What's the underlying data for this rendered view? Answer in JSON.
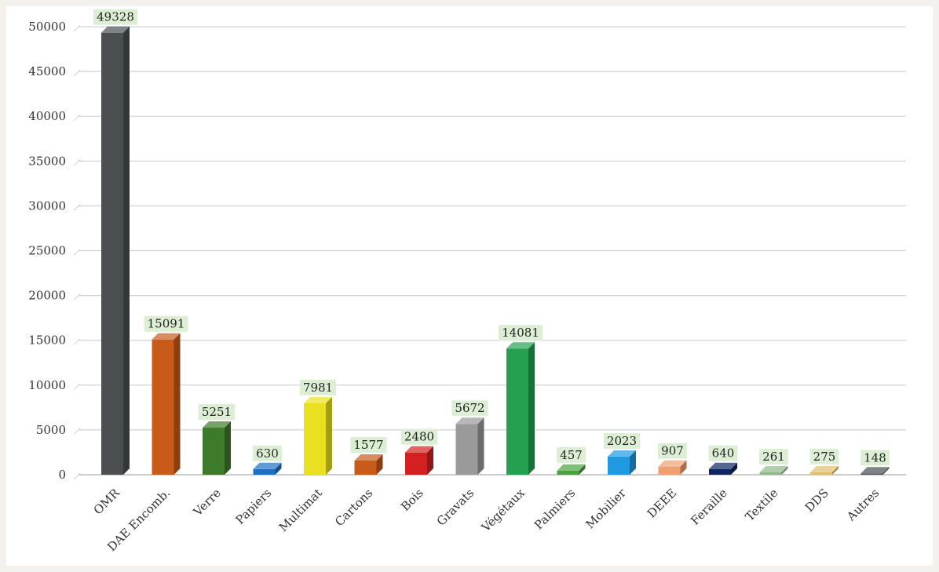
{
  "chart_data": {
    "type": "bar",
    "title": "",
    "xlabel": "",
    "ylabel": "",
    "ylim": [
      0,
      50000
    ],
    "yticks": [
      0,
      5000,
      10000,
      15000,
      20000,
      25000,
      30000,
      35000,
      40000,
      45000,
      50000
    ],
    "grid": true,
    "categories": [
      "OMR",
      "DAE Encomb.",
      "Verre",
      "Papiers",
      "Multimat",
      "Cartons",
      "Bois",
      "Gravats",
      "Végétaux",
      "Palmiers",
      "Mobilier",
      "DEEE",
      "Feraille",
      "Textile",
      "DDS",
      "Autres"
    ],
    "values": [
      49328,
      15091,
      5251,
      630,
      7981,
      1577,
      2480,
      5672,
      14081,
      457,
      2023,
      907,
      640,
      261,
      275,
      148
    ],
    "colors": [
      "#4a4f52",
      "#c85a1a",
      "#3d7a2a",
      "#1f6fc0",
      "#e8e020",
      "#c85a1a",
      "#d42020",
      "#9a9a9a",
      "#25a050",
      "#4aa040",
      "#1f9ae0",
      "#f0a070",
      "#0f2560",
      "#8fb88a",
      "#e0c070",
      "#4a4f52"
    ],
    "data_labels": [
      "49328",
      "15091",
      "5251",
      "630",
      "7981",
      "1577",
      "2480",
      "5672",
      "14081",
      "457",
      "2023",
      "907",
      "640",
      "261",
      "275",
      "148"
    ],
    "data_label_background": "#dcefd4",
    "legend": "none"
  }
}
